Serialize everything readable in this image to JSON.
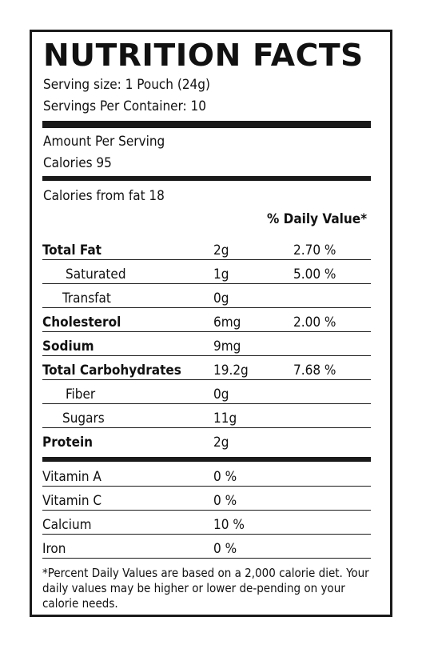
{
  "title": "NUTRITION FACTS",
  "serving_size": "Serving size: 1 Pouch (24g)",
  "servings_per_container": "Servings Per Container: 10",
  "amount_per_serving": "Amount Per Serving",
  "calories": "Calories  95",
  "calories_from_fat": "Calories from fat 18",
  "daily_value_header": "% Daily Value*",
  "nutrients": [
    {
      "name": "Total Fat",
      "amount": "2g",
      "percent": "2.70 %"
    },
    {
      "name": "Saturated",
      "amount": "1g",
      "percent": "5.00 %"
    },
    {
      "name": "Transfat",
      "amount": "0g",
      "percent": ""
    },
    {
      "name": "Cholesterol",
      "amount": "6mg",
      "percent": "2.00 %"
    },
    {
      "name": "Sodium",
      "amount": "9mg",
      "percent": ""
    },
    {
      "name": "Total Carbohydrates",
      "amount": "19.2g",
      "percent": "7.68 %"
    },
    {
      "name": "Fiber",
      "amount": "0g",
      "percent": ""
    },
    {
      "name": "Sugars",
      "amount": "11g",
      "percent": ""
    },
    {
      "name": "Protein",
      "amount": "2g",
      "percent": ""
    }
  ],
  "vitamins": [
    {
      "name": "Vitamin A",
      "amount": "0 %"
    },
    {
      "name": "Vitamin C",
      "amount": "0 %"
    },
    {
      "name": "Calcium",
      "amount": "10 %"
    },
    {
      "name": "Iron",
      "amount": " 0 %"
    }
  ],
  "footnote": "*Percent Daily Values are based on a 2,000 calorie diet. Your daily values may be higher or lower de-pending on your calorie needs."
}
